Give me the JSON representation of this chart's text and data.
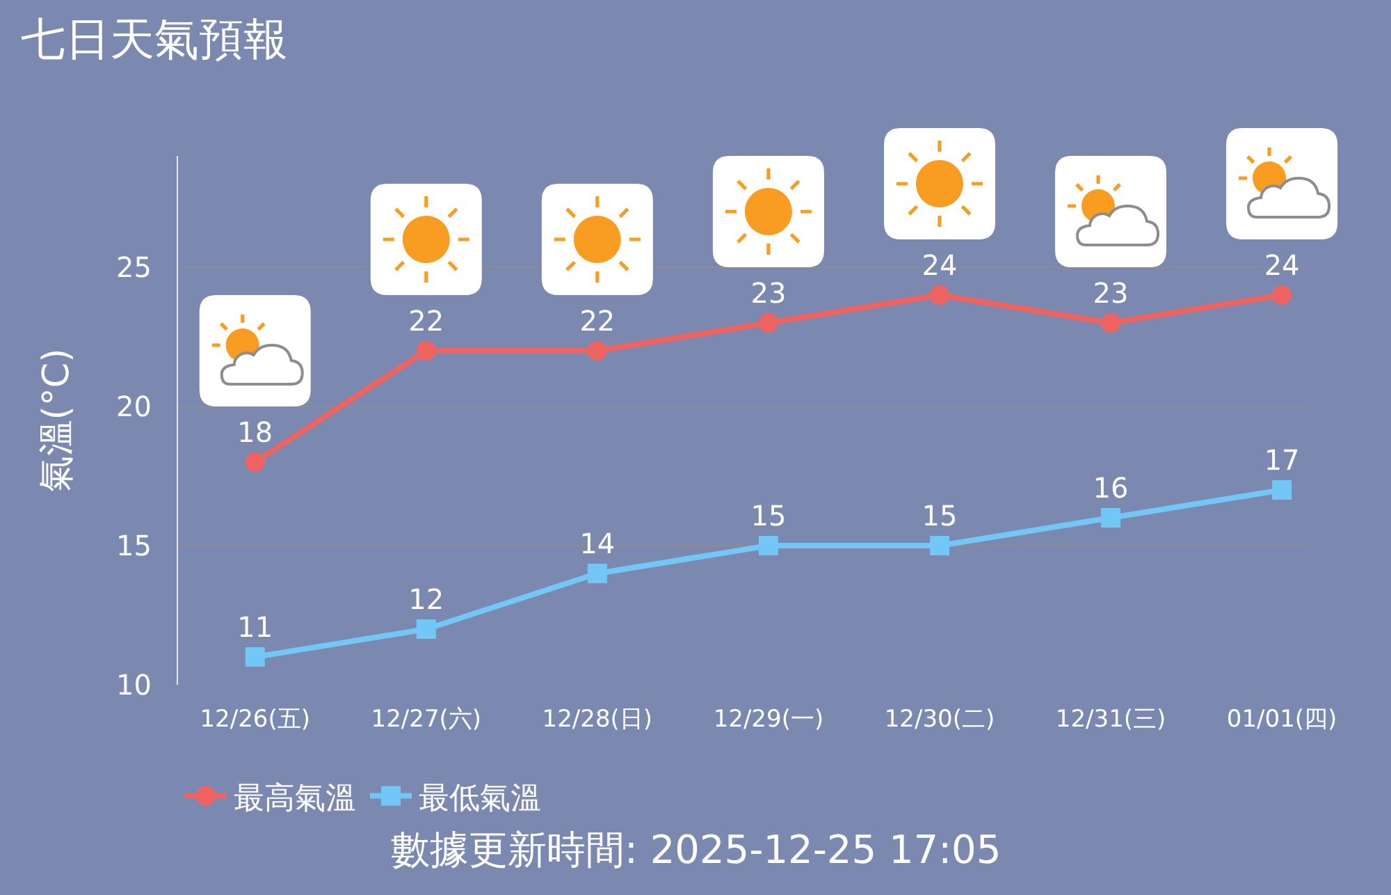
{
  "chart_data": {
    "type": "line",
    "title": "七日天氣預報",
    "ylabel": "氣溫(°C)",
    "categories": [
      "12/26(五)",
      "12/27(六)",
      "12/28(日)",
      "12/29(一)",
      "12/30(二)",
      "12/31(三)",
      "01/01(四)"
    ],
    "series": [
      {
        "name": "最高氣溫",
        "color": "#ef6461",
        "marker": "circle",
        "values": [
          18,
          22,
          22,
          23,
          24,
          23,
          24
        ]
      },
      {
        "name": "最低氣溫",
        "color": "#72c7f7",
        "marker": "square",
        "values": [
          11,
          12,
          14,
          15,
          15,
          16,
          17
        ]
      }
    ],
    "ylim": [
      10,
      29
    ],
    "yticks": [
      10,
      15,
      20,
      25
    ],
    "grid": "y",
    "legend": "bottom left",
    "line_style": "solid",
    "data_labels": true,
    "annotations": [
      "數據更新時間: 2025-12-25 17:05"
    ]
  }
}
